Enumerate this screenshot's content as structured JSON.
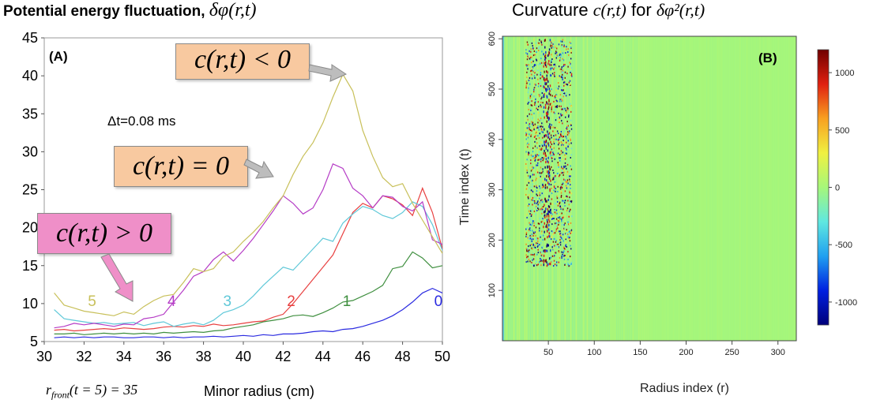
{
  "colors": {
    "s0": "#2a2ae0",
    "s1": "#3f8f3f",
    "s2": "#e84040",
    "s3": "#5fc8d8",
    "s4": "#b53cc6",
    "s5": "#c8c05a",
    "orange_callout": "#f8c9a0",
    "pink_callout": "#ef8fc8",
    "heat_background": "#a6f77a"
  },
  "panel_a": {
    "title_text": "Potential energy fluctuation,",
    "title_symbol": "δφ(r,t)",
    "panel_label": "(A)",
    "dt_label": "Δt=0.08 ms",
    "callouts": {
      "negative": "c(r,t) < 0",
      "zero": "c(r,t) = 0",
      "positive": "c(r,t) > 0"
    },
    "front_label": "r",
    "front_sub": "front",
    "front_rest": "(t = 5) = 35",
    "xlabel_text": "Minor radius (cm)"
  },
  "panel_b": {
    "title_text": "Curvature",
    "title_symbol1": "c(r,t)",
    "title_for": "for",
    "title_symbol2": "δφ²(r,t)",
    "panel_label": "(B)",
    "xlabel": "Radius index (r)",
    "ylabel": "Time index (t)"
  },
  "chart_data": [
    {
      "type": "line",
      "title": "Potential energy fluctuation, δφ(r,t)",
      "xlabel": "Minor radius (cm)",
      "ylabel": "",
      "xlim": [
        30,
        50
      ],
      "ylim": [
        5,
        45
      ],
      "xticks": [
        30,
        32,
        34,
        36,
        38,
        40,
        42,
        44,
        46,
        48,
        50
      ],
      "yticks": [
        5,
        10,
        15,
        20,
        25,
        30,
        35,
        40,
        45
      ],
      "x": [
        30.5,
        31,
        31.5,
        32,
        32.5,
        33,
        33.5,
        34,
        34.5,
        35,
        35.5,
        36,
        36.5,
        37,
        37.5,
        38,
        38.5,
        39,
        39.5,
        40,
        40.5,
        41,
        41.5,
        42,
        42.5,
        43,
        43.5,
        44,
        44.5,
        45,
        45.5,
        46,
        46.5,
        47,
        47.5,
        48,
        48.5,
        49,
        49.5,
        50
      ],
      "series": [
        {
          "name": "0",
          "label_x": 49.8,
          "label_y": 10.4,
          "values": [
            5.5,
            5.6,
            5.5,
            5.6,
            5.5,
            5.6,
            5.6,
            5.5,
            5.5,
            5.6,
            5.6,
            5.5,
            5.6,
            5.5,
            5.6,
            5.6,
            5.7,
            5.6,
            5.7,
            5.8,
            5.7,
            5.9,
            5.8,
            6.0,
            6.0,
            6.1,
            6.3,
            6.4,
            6.3,
            6.6,
            6.7,
            7.0,
            7.4,
            7.8,
            8.4,
            9.2,
            10.2,
            11.4,
            12.0,
            11.4
          ]
        },
        {
          "name": "1",
          "label_x": 45.2,
          "label_y": 10.4,
          "values": [
            6.0,
            6.0,
            6.1,
            5.9,
            6.0,
            6.1,
            6.0,
            6.1,
            6.0,
            6.1,
            6.0,
            6.2,
            6.1,
            6.2,
            6.3,
            6.2,
            6.4,
            6.5,
            6.8,
            7.0,
            7.2,
            7.6,
            7.8,
            8.0,
            8.4,
            8.5,
            8.3,
            8.8,
            9.4,
            10.2,
            10.4,
            11.0,
            11.6,
            12.4,
            14.6,
            14.9,
            16.8,
            16.0,
            14.7,
            15.0
          ]
        },
        {
          "name": "2",
          "label_x": 42.4,
          "label_y": 10.4,
          "values": [
            6.5,
            6.6,
            6.4,
            6.5,
            6.6,
            6.7,
            6.6,
            6.8,
            6.7,
            6.6,
            6.7,
            6.9,
            7.0,
            6.9,
            7.1,
            7.0,
            7.3,
            7.1,
            7.2,
            7.4,
            7.6,
            7.7,
            8.2,
            8.6,
            10.0,
            11.6,
            13.2,
            14.8,
            16.4,
            19.2,
            22.0,
            23.2,
            22.6,
            24.2,
            23.8,
            23.0,
            21.6,
            25.2,
            22.0,
            17.2
          ]
        },
        {
          "name": "3",
          "label_x": 39.2,
          "label_y": 10.4,
          "values": [
            9.2,
            8.0,
            7.8,
            7.6,
            7.4,
            7.5,
            7.3,
            7.4,
            7.5,
            7.1,
            7.4,
            7.6,
            7.0,
            7.3,
            7.5,
            7.2,
            7.8,
            8.8,
            9.2,
            9.8,
            11.0,
            12.4,
            13.6,
            14.8,
            14.4,
            15.8,
            17.2,
            18.6,
            18.2,
            20.6,
            21.8,
            22.8,
            22.4,
            21.6,
            21.2,
            22.0,
            23.4,
            22.8,
            20.4,
            17.0
          ]
        },
        {
          "name": "4",
          "label_x": 36.4,
          "label_y": 10.4,
          "values": [
            6.8,
            7.0,
            7.4,
            7.2,
            7.4,
            7.2,
            7.0,
            7.3,
            7.2,
            8.0,
            8.2,
            8.6,
            10.2,
            11.8,
            13.6,
            14.2,
            15.8,
            16.8,
            15.6,
            17.0,
            18.6,
            20.4,
            22.2,
            24.2,
            23.2,
            21.8,
            22.6,
            25.0,
            28.4,
            27.8,
            25.2,
            24.2,
            22.6,
            24.2,
            24.0,
            22.8,
            22.2,
            23.4,
            18.4,
            17.8
          ]
        },
        {
          "name": "5",
          "label_x": 32.4,
          "label_y": 10.4,
          "values": [
            11.4,
            9.8,
            9.4,
            9.0,
            8.8,
            8.6,
            8.4,
            8.9,
            8.6,
            9.6,
            10.4,
            11.0,
            11.2,
            12.8,
            14.6,
            14.2,
            14.6,
            16.2,
            16.8,
            18.2,
            19.4,
            20.8,
            22.6,
            24.2,
            27.0,
            29.4,
            31.2,
            33.8,
            37.2,
            40.2,
            38.0,
            32.8,
            29.4,
            26.6,
            25.4,
            25.8,
            23.2,
            21.0,
            18.8,
            16.6
          ]
        }
      ]
    },
    {
      "type": "heatmap",
      "title": "Curvature c(r,t) for δφ²(r,t)",
      "xlabel": "Radius index (r)",
      "ylabel": "Time index (t)",
      "xlim": [
        0,
        320
      ],
      "ylim": [
        0,
        605
      ],
      "xticks": [
        50,
        100,
        150,
        200,
        250,
        300
      ],
      "yticks": [
        100,
        200,
        300,
        400,
        500,
        600
      ],
      "colorbar": {
        "min": -1200,
        "max": 1200,
        "ticks": [
          1000,
          500,
          0,
          -500,
          -1000
        ]
      },
      "description_values": {
        "dominant_value": 0,
        "active_band_r": [
          25,
          75
        ],
        "active_band_t": [
          150,
          600
        ],
        "strongest_r": 48
      }
    }
  ]
}
